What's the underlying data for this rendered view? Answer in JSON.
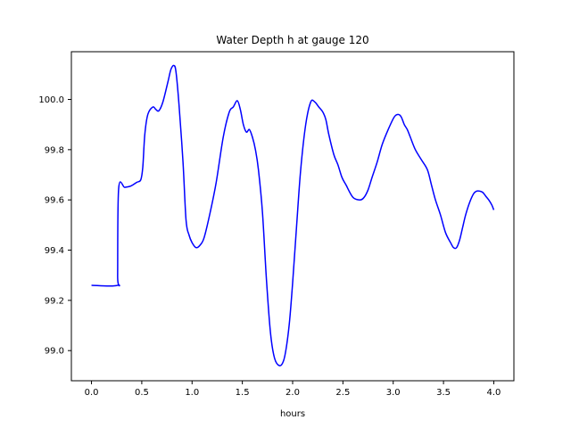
{
  "chart_data": {
    "type": "line",
    "title": "Water Depth h at gauge 120",
    "xlabel": "hours",
    "ylabel": "",
    "xlim": [
      -0.2,
      4.2
    ],
    "ylim": [
      98.88,
      100.19
    ],
    "xticks": [
      0.0,
      0.5,
      1.0,
      1.5,
      2.0,
      2.5,
      3.0,
      3.5,
      4.0
    ],
    "xtick_labels": [
      "0.0",
      "0.5",
      "1.0",
      "1.5",
      "2.0",
      "2.5",
      "3.0",
      "3.5",
      "4.0"
    ],
    "yticks": [
      99.0,
      99.2,
      99.4,
      99.6,
      99.8,
      100.0
    ],
    "ytick_labels": [
      "99.0",
      "99.2",
      "99.4",
      "99.6",
      "99.8",
      "100.0"
    ],
    "grid": false,
    "legend": "none",
    "series": [
      {
        "color": "#0000ff",
        "x": [
          0.0,
          0.26,
          0.26,
          0.27,
          0.33,
          0.39,
          0.45,
          0.49,
          0.51,
          0.53,
          0.56,
          0.61,
          0.64,
          0.67,
          0.71,
          0.76,
          0.79,
          0.82,
          0.84,
          0.87,
          0.91,
          0.94,
          0.97,
          1.0,
          1.04,
          1.08,
          1.12,
          1.18,
          1.24,
          1.31,
          1.37,
          1.41,
          1.45,
          1.48,
          1.51,
          1.54,
          1.57,
          1.6,
          1.63,
          1.66,
          1.7,
          1.74,
          1.78,
          1.82,
          1.87,
          1.91,
          1.94,
          1.97,
          2.0,
          2.04,
          2.08,
          2.13,
          2.18,
          2.22,
          2.26,
          2.3,
          2.33,
          2.36,
          2.41,
          2.45,
          2.49,
          2.53,
          2.6,
          2.67,
          2.71,
          2.75,
          2.79,
          2.84,
          2.89,
          2.95,
          3.01,
          3.05,
          3.08,
          3.11,
          3.14,
          3.17,
          3.22,
          3.28,
          3.34,
          3.38,
          3.42,
          3.47,
          3.52,
          3.57,
          3.6,
          3.63,
          3.66,
          3.69,
          3.72,
          3.76,
          3.8,
          3.83,
          3.86,
          3.89,
          3.92,
          3.95,
          3.98,
          4.0
        ],
        "values": [
          99.26,
          99.26,
          99.3,
          99.645,
          99.65,
          99.655,
          99.67,
          99.68,
          99.73,
          99.86,
          99.94,
          99.97,
          99.96,
          99.955,
          99.99,
          100.07,
          100.12,
          100.135,
          100.11,
          99.98,
          99.75,
          99.52,
          99.46,
          99.43,
          99.41,
          99.42,
          99.45,
          99.55,
          99.67,
          99.85,
          99.95,
          99.97,
          99.995,
          99.96,
          99.9,
          99.87,
          99.88,
          99.85,
          99.8,
          99.72,
          99.55,
          99.28,
          99.07,
          98.97,
          98.94,
          98.96,
          99.02,
          99.12,
          99.27,
          99.5,
          99.72,
          99.9,
          99.99,
          99.99,
          99.97,
          99.95,
          99.92,
          99.86,
          99.78,
          99.74,
          99.69,
          99.66,
          99.61,
          99.6,
          99.61,
          99.64,
          99.69,
          99.75,
          99.82,
          99.88,
          99.93,
          99.94,
          99.93,
          99.9,
          99.88,
          99.85,
          99.8,
          99.76,
          99.72,
          99.66,
          99.6,
          99.54,
          99.47,
          99.43,
          99.41,
          99.41,
          99.44,
          99.49,
          99.54,
          99.59,
          99.625,
          99.635,
          99.635,
          99.63,
          99.615,
          99.6,
          99.58,
          99.56
        ]
      }
    ]
  }
}
